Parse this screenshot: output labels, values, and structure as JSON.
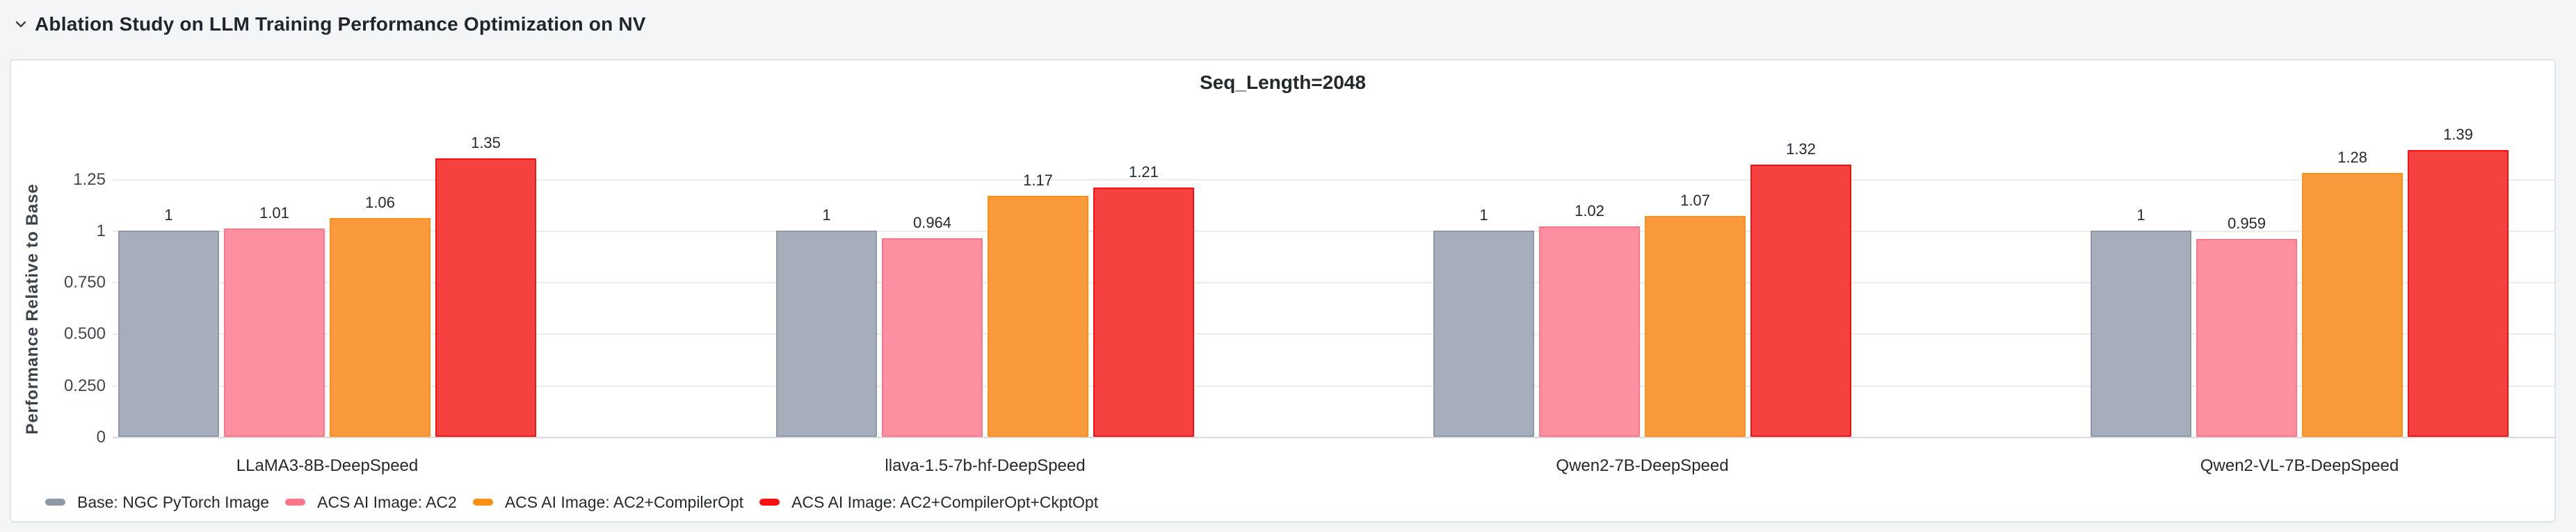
{
  "row": {
    "title": "Ablation Study on LLM Training Performance Optimization on NV",
    "collapse_icon": "chevron-down-icon"
  },
  "panel": {
    "title": "Seq_Length=2048"
  },
  "colors": {
    "page_background": "#f4f5f6",
    "panel_background": "#ffffff",
    "panel_border": "#e3e6e8",
    "gridline": "#e9ebec",
    "zero_line": "#d9dcde",
    "text": "#24292e"
  },
  "chart_data": {
    "type": "bar",
    "title": "Seq_Length=2048",
    "xlabel": "",
    "ylabel": "Performance Relative to Base",
    "ylim": [
      0,
      1.45
    ],
    "grid": true,
    "legend_position": "bottom-left",
    "yticks": [
      {
        "label": "0",
        "value": 0
      },
      {
        "label": "0.250",
        "value": 0.25
      },
      {
        "label": "0.500",
        "value": 0.5
      },
      {
        "label": "0.750",
        "value": 0.75
      },
      {
        "label": "1",
        "value": 1
      },
      {
        "label": "1.25",
        "value": 1.25
      }
    ],
    "categories": [
      "LLaMA3-8B-DeepSpeed",
      "llava-1.5-7b-hf-DeepSpeed",
      "Qwen2-7B-DeepSpeed",
      "Qwen2-VL-7B-DeepSpeed"
    ],
    "series": [
      {
        "name": "Base: NGC PyTorch Image",
        "fill": "#a6aebb",
        "border": "#8e98a7",
        "values": [
          1,
          1,
          1,
          1
        ],
        "labels": [
          "1",
          "1",
          "1",
          "1"
        ]
      },
      {
        "name": "ACS AI Image: AC2",
        "fill": "#fd8fa0",
        "border": "#fc7589",
        "values": [
          1.01,
          0.964,
          1.02,
          0.959
        ],
        "labels": [
          "1.01",
          "0.964",
          "1.02",
          "0.959"
        ]
      },
      {
        "name": "ACS AI Image: AC2+CompilerOpt",
        "fill": "#fa9a3c",
        "border": "#ff8e14",
        "values": [
          1.06,
          1.17,
          1.07,
          1.28
        ],
        "labels": [
          "1.06",
          "1.17",
          "1.07",
          "1.28"
        ]
      },
      {
        "name": "ACS AI Image: AC2+CompilerOpt+CkptOpt",
        "fill": "#f64141",
        "border": "#f81111",
        "values": [
          1.35,
          1.21,
          1.32,
          1.39
        ],
        "labels": [
          "1.35",
          "1.21",
          "1.32",
          "1.39"
        ]
      }
    ]
  }
}
